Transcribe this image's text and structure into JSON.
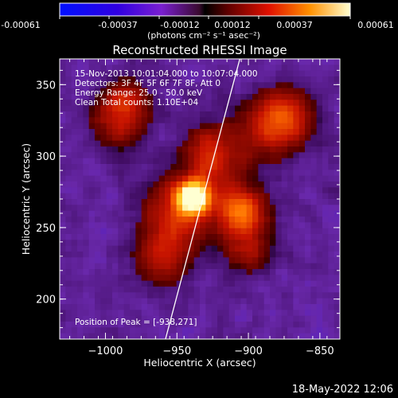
{
  "colorbar": {
    "tick_labels": [
      "-0.00061",
      "-0.00037",
      "-0.00012",
      "0.00012",
      "0.00037",
      "0.00061"
    ],
    "units": "(photons cm⁻² s⁻¹ asec⁻²)",
    "min": -0.00061,
    "max": 0.00061
  },
  "chart_data": {
    "type": "heatmap",
    "title": "Reconstructed RHESSI Image",
    "xlabel": "Heliocentric X (arcsec)",
    "ylabel": "Heliocentric Y (arcsec)",
    "xlim": [
      -1032,
      -836
    ],
    "ylim": [
      172,
      368
    ],
    "x_ticks": [
      -1000,
      -950,
      -900,
      -850
    ],
    "y_ticks": [
      200,
      250,
      300,
      350
    ],
    "x_tick_labels": [
      "−1000",
      "−950",
      "−900",
      "−850"
    ],
    "y_tick_labels": [
      "200",
      "250",
      "300",
      "350"
    ],
    "annotations": [
      "15-Nov-2013 10:01:04.000 to 10:07:04.000",
      "Detectors: 3F 4F 5F 6F 7F 8F, Att 0",
      "Energy Range: 25.0 - 50.0 keV",
      "Clean    Total counts: 1.10E+04"
    ],
    "peak_label": "Position of Peak = [-938,271]",
    "peak": [
      -938,
      271
    ],
    "limb_line": [
      [
        -958,
        172
      ],
      [
        -906,
        368
      ]
    ],
    "sources": [
      {
        "x": -938,
        "y": 271,
        "amp": 1.0,
        "sigma": 8
      },
      {
        "x": -948,
        "y": 262,
        "amp": 0.45,
        "sigma": 16
      },
      {
        "x": -905,
        "y": 262,
        "amp": 0.65,
        "sigma": 12
      },
      {
        "x": -925,
        "y": 300,
        "amp": 0.45,
        "sigma": 14
      },
      {
        "x": -885,
        "y": 320,
        "amp": 0.4,
        "sigma": 16
      },
      {
        "x": -870,
        "y": 330,
        "amp": 0.3,
        "sigma": 12
      },
      {
        "x": -990,
        "y": 325,
        "amp": 0.35,
        "sigma": 14
      },
      {
        "x": -985,
        "y": 340,
        "amp": 0.25,
        "sigma": 10
      },
      {
        "x": -960,
        "y": 230,
        "amp": 0.35,
        "sigma": 14
      },
      {
        "x": -900,
        "y": 235,
        "amp": 0.3,
        "sigma": 12
      }
    ]
  },
  "footer": {
    "date": "18-May-2022 12:06"
  }
}
